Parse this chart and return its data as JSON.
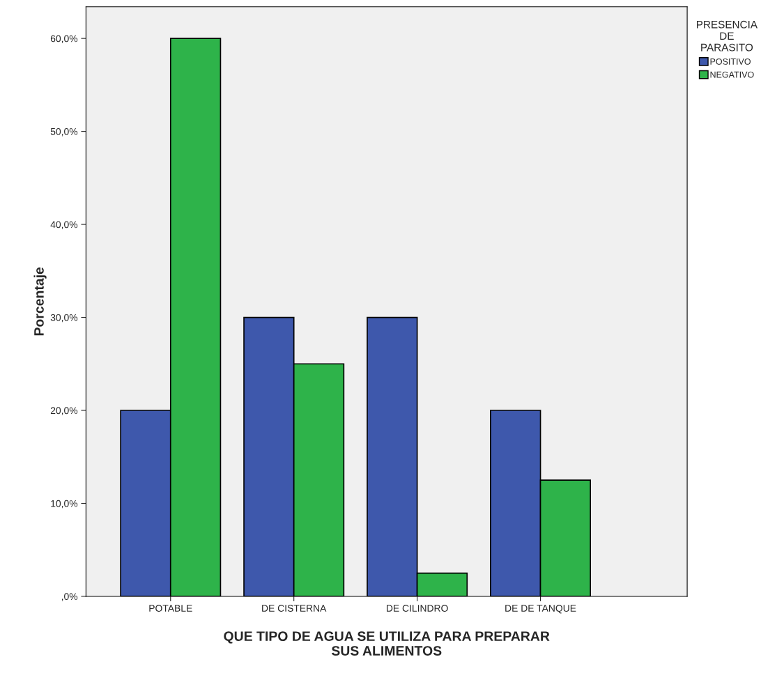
{
  "chart_data": {
    "type": "bar",
    "categories": [
      "POTABLE",
      "DE CISTERNA",
      "DE CILINDRO",
      "DE DE TANQUE"
    ],
    "series": [
      {
        "name": "POSITIVO",
        "color": "#3e58ac",
        "values": [
          20,
          30,
          30,
          20
        ]
      },
      {
        "name": "NEGATIVO",
        "color": "#2eb34a",
        "values": [
          60,
          25,
          2.5,
          12.5
        ]
      }
    ],
    "xlabel": "QUE TIPO DE AGUA SE UTILIZA PARA PREPARAR\nSUS ALIMENTOS",
    "ylabel": "Porcentaje",
    "legend_title": "PRESENCIA\nDE\nPARASITO",
    "legend": "top right",
    "ylim": [
      0,
      63.4
    ],
    "yticks": [
      {
        "value": 0,
        "label": ",0%"
      },
      {
        "value": 10,
        "label": "10,0%"
      },
      {
        "value": 20,
        "label": "20,0%"
      },
      {
        "value": 30,
        "label": "30,0%"
      },
      {
        "value": 40,
        "label": "40,0%"
      },
      {
        "value": 50,
        "label": "50,0%"
      },
      {
        "value": 60,
        "label": "60,0%"
      }
    ],
    "grid": false
  }
}
